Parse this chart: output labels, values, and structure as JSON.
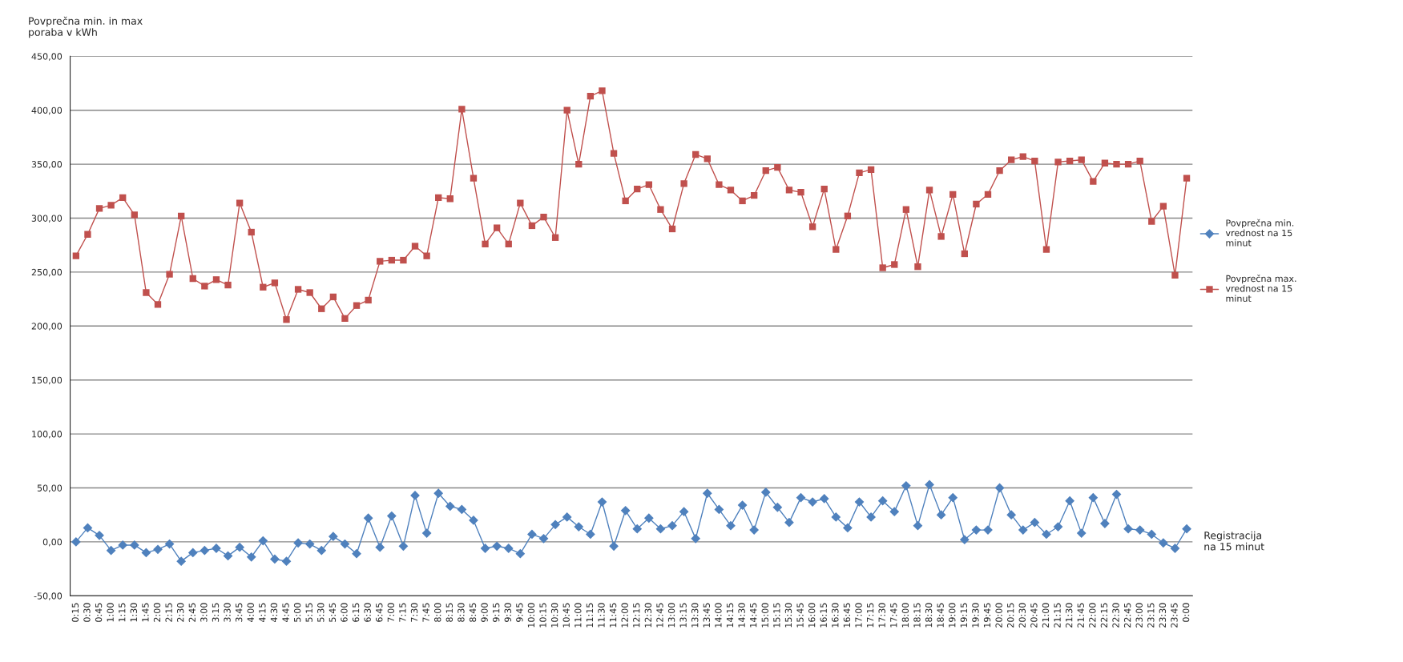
{
  "chart_data": {
    "type": "line",
    "ylabel": "Povprečna min. in max\nporaba v kWh",
    "xlabel": "Registracija\nna 15 minut",
    "categories": [
      "0:15",
      "0:30",
      "0:45",
      "1:00",
      "1:15",
      "1:30",
      "1:45",
      "2:00",
      "2:15",
      "2:30",
      "2:45",
      "3:00",
      "3:15",
      "3:30",
      "3:45",
      "4:00",
      "4:15",
      "4:30",
      "4:45",
      "5:00",
      "5:15",
      "5:30",
      "5:45",
      "6:00",
      "6:15",
      "6:30",
      "6:45",
      "7:00",
      "7:15",
      "7:30",
      "7:45",
      "8:00",
      "8:15",
      "8:30",
      "8:45",
      "9:00",
      "9:15",
      "9:30",
      "9:45",
      "10:00",
      "10:15",
      "10:30",
      "10:45",
      "11:00",
      "11:15",
      "11:30",
      "11:45",
      "12:00",
      "12:15",
      "12:30",
      "12:45",
      "13:00",
      "13:15",
      "13:30",
      "13:45",
      "14:00",
      "14:15",
      "14:30",
      "14:45",
      "15:00",
      "15:15",
      "15:30",
      "15:45",
      "16:00",
      "16:15",
      "16:30",
      "16:45",
      "17:00",
      "17:15",
      "17:30",
      "17:45",
      "18:00",
      "18:15",
      "18:30",
      "18:45",
      "19:00",
      "19:15",
      "19:30",
      "19:45",
      "20:00",
      "20:15",
      "20:30",
      "20:45",
      "21:00",
      "21:15",
      "21:30",
      "21:45",
      "22:00",
      "22:15",
      "22:30",
      "22:45",
      "23:00",
      "23:15",
      "23:30",
      "23:45",
      "0:00"
    ],
    "series": [
      {
        "name": "Povprečna min. vrednost na 15 minut",
        "color": "#4f81bd",
        "marker": "diamond",
        "values": [
          0,
          13,
          6,
          -8,
          -3,
          -3,
          -10,
          -7,
          -2,
          -18,
          -10,
          -8,
          -6,
          -13,
          -5,
          -14,
          1,
          -16,
          -18,
          -1,
          -2,
          -8,
          5,
          -2,
          -11,
          22,
          -5,
          24,
          -4,
          43,
          8,
          45,
          33,
          30,
          20,
          -6,
          -4,
          -6,
          -11,
          7,
          3,
          16,
          23,
          14,
          7,
          37,
          -4,
          29,
          12,
          22,
          12,
          15,
          28,
          3,
          45,
          30,
          15,
          34,
          11,
          46,
          32,
          18,
          41,
          37,
          40,
          23,
          13,
          37,
          23,
          38,
          28,
          52,
          15,
          53,
          25,
          41,
          2,
          11,
          11,
          50,
          25,
          11,
          18,
          7,
          14,
          38,
          8,
          41,
          17,
          44,
          12,
          11,
          7,
          -1,
          -6,
          12
        ]
      },
      {
        "name": "Povprečna max. vrednost na 15 minut",
        "color": "#c0504d",
        "marker": "square",
        "values": [
          265,
          285,
          309,
          312,
          319,
          303,
          231,
          220,
          248,
          302,
          244,
          237,
          243,
          238,
          314,
          287,
          236,
          240,
          206,
          234,
          231,
          216,
          227,
          207,
          219,
          224,
          260,
          261,
          261,
          274,
          265,
          319,
          318,
          401,
          337,
          276,
          291,
          276,
          314,
          293,
          301,
          282,
          400,
          350,
          413,
          418,
          360,
          316,
          327,
          331,
          308,
          290,
          332,
          359,
          355,
          331,
          326,
          316,
          321,
          344,
          347,
          326,
          324,
          292,
          327,
          271,
          302,
          342,
          345,
          254,
          257,
          308,
          255,
          326,
          283,
          322,
          267,
          313,
          322,
          344,
          354,
          357,
          353,
          271,
          352,
          353,
          354,
          334,
          351,
          350,
          350,
          353,
          297,
          311,
          247,
          337
        ]
      }
    ],
    "ylim": [
      -50,
      450
    ],
    "yticks": [
      {
        "value": -50,
        "label": "-50,00"
      },
      {
        "value": 0,
        "label": "0,00"
      },
      {
        "value": 50,
        "label": "50,00"
      },
      {
        "value": 100,
        "label": "100,00"
      },
      {
        "value": 150,
        "label": "150,00"
      },
      {
        "value": 200,
        "label": "200,00"
      },
      {
        "value": 250,
        "label": "250,00"
      },
      {
        "value": 300,
        "label": "300,00"
      },
      {
        "value": 350,
        "label": "350,00"
      },
      {
        "value": 400,
        "label": "400,00"
      },
      {
        "value": 450,
        "label": "450,00"
      }
    ],
    "grid": "y",
    "legend": "right",
    "line_style": "solid"
  }
}
